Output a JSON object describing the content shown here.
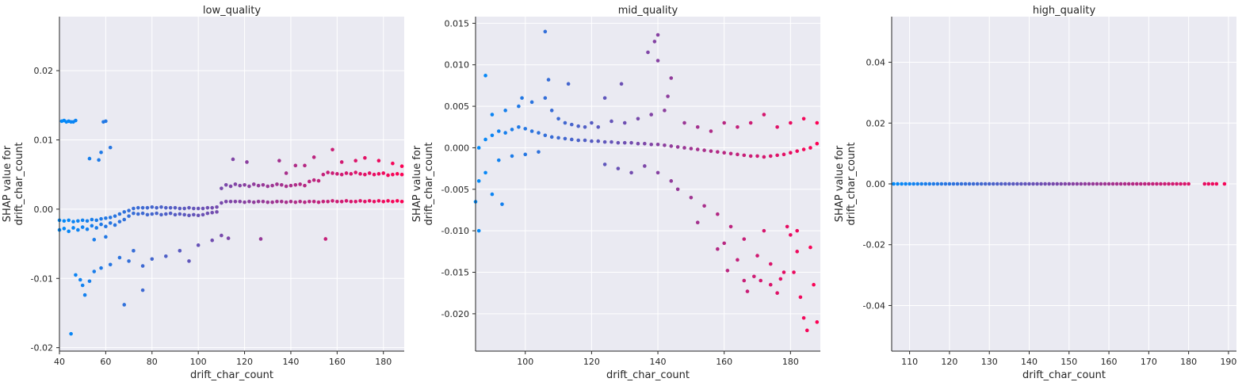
{
  "colors": {
    "low": "#008bfb",
    "high": "#ff0052",
    "background": "#eaeaf2",
    "grid": "#ffffff",
    "spine": "#262626"
  },
  "chart_data": [
    {
      "type": "scatter",
      "title": "low_quality",
      "xlabel": "drift_char_count",
      "ylabel": "SHAP value for\ndrift_char_count",
      "xlim": [
        40,
        189
      ],
      "ylim": [
        -0.0205,
        0.0278
      ],
      "xticks": [
        40,
        60,
        80,
        100,
        120,
        140,
        160,
        180
      ],
      "xtick_labels": [
        "40",
        "60",
        "80",
        "100",
        "120",
        "140",
        "160",
        "180"
      ],
      "yticks": [
        -0.02,
        -0.01,
        0.0,
        0.01,
        0.02
      ],
      "ytick_labels": [
        "-0.02",
        "-0.01",
        "0.00",
        "0.01",
        "0.02"
      ],
      "grid": true,
      "series": [
        {
          "x": [
            40,
            42,
            44,
            46,
            48,
            50,
            52,
            54,
            56,
            58,
            60,
            62,
            64,
            66,
            68,
            70,
            72,
            74,
            76,
            78,
            80,
            82,
            84,
            86,
            88,
            90,
            92,
            94,
            96,
            98,
            100,
            102,
            104,
            106,
            108,
            110,
            112,
            114,
            116,
            118,
            120,
            122,
            124,
            126,
            128,
            130,
            132,
            134,
            136,
            138,
            140,
            142,
            144,
            146,
            148,
            150,
            152,
            154,
            156,
            158,
            160,
            162,
            164,
            166,
            168,
            170,
            172,
            174,
            176,
            178,
            180,
            182,
            184,
            186,
            188
          ],
          "y": [
            -0.0016,
            -0.0017,
            -0.0016,
            -0.0018,
            -0.0017,
            -0.0016,
            -0.0017,
            -0.0015,
            -0.0016,
            -0.0014,
            -0.0013,
            -0.0012,
            -0.001,
            -0.0007,
            -0.0004,
            -0.0002,
            0.0001,
            0.0002,
            0.0002,
            0.0002,
            0.0003,
            0.0002,
            0.0003,
            0.0002,
            0.0002,
            0.0002,
            0.0001,
            0.0001,
            0.0002,
            0.0001,
            0.0001,
            0.0001,
            0.0002,
            0.0002,
            0.0003,
            0.0009,
            0.0011,
            0.0011,
            0.0011,
            0.0011,
            0.001,
            0.0011,
            0.001,
            0.0011,
            0.0011,
            0.001,
            0.001,
            0.0011,
            0.0011,
            0.001,
            0.0011,
            0.001,
            0.0011,
            0.001,
            0.0011,
            0.0011,
            0.001,
            0.0011,
            0.0011,
            0.0012,
            0.0011,
            0.0011,
            0.0012,
            0.0011,
            0.0011,
            0.0012,
            0.0011,
            0.0012,
            0.0011,
            0.0012,
            0.0011,
            0.0012,
            0.0011,
            0.0012,
            0.0011
          ]
        },
        {
          "x": [
            40,
            42,
            44,
            46,
            48,
            50,
            52,
            54,
            56,
            58,
            60,
            62,
            64,
            66,
            68,
            70,
            72,
            74,
            76,
            78,
            80,
            82,
            84,
            86,
            88,
            90,
            92,
            94,
            96,
            98,
            100,
            102,
            104,
            106,
            108,
            110,
            112,
            114,
            116,
            118,
            120,
            122,
            124,
            126,
            128,
            130,
            132,
            134,
            136,
            138,
            140,
            142,
            144,
            146,
            148,
            150,
            152,
            154,
            156,
            158,
            160,
            162,
            164,
            166,
            168,
            170,
            172,
            174,
            176,
            178,
            180,
            182,
            184,
            186,
            188
          ],
          "y": [
            -0.003,
            -0.0028,
            -0.0032,
            -0.0027,
            -0.003,
            -0.0026,
            -0.0029,
            -0.0024,
            -0.0027,
            -0.0022,
            -0.0025,
            -0.002,
            -0.0023,
            -0.0018,
            -0.0015,
            -0.001,
            -0.0006,
            -0.0007,
            -0.0006,
            -0.0008,
            -0.0007,
            -0.0006,
            -0.0008,
            -0.0007,
            -0.0006,
            -0.0008,
            -0.0007,
            -0.0008,
            -0.0009,
            -0.0008,
            -0.0009,
            -0.0008,
            -0.0006,
            -0.0005,
            -0.0004,
            0.003,
            0.0035,
            0.0033,
            0.0036,
            0.0034,
            0.0035,
            0.0033,
            0.0036,
            0.0034,
            0.0035,
            0.0033,
            0.0034,
            0.0036,
            0.0035,
            0.0033,
            0.0034,
            0.0035,
            0.0036,
            0.0034,
            0.004,
            0.0042,
            0.0041,
            0.005,
            0.0053,
            0.0052,
            0.0051,
            0.005,
            0.0052,
            0.0051,
            0.0053,
            0.0051,
            0.005,
            0.0052,
            0.005,
            0.0051,
            0.0052,
            0.0049,
            0.005,
            0.0051,
            0.005
          ]
        },
        {
          "x": [
            41,
            42,
            43,
            44,
            45,
            46,
            47,
            59,
            60,
            62,
            58,
            53,
            57,
            55,
            60,
            68,
            70,
            76,
            80,
            86,
            92,
            96,
            100,
            106,
            110,
            113,
            115,
            121,
            127,
            135,
            138,
            142,
            146,
            150,
            155,
            158,
            162,
            168,
            172,
            178,
            184,
            188,
            45,
            47,
            49,
            50,
            51,
            53,
            55,
            58,
            62,
            66,
            72,
            76
          ],
          "y": [
            0.0127,
            0.0128,
            0.0126,
            0.0127,
            0.0126,
            0.0126,
            0.0128,
            0.0126,
            0.0127,
            0.0089,
            0.0082,
            0.0073,
            0.0071,
            -0.0044,
            -0.004,
            -0.0138,
            -0.0075,
            -0.0117,
            -0.0072,
            -0.0068,
            -0.006,
            -0.0075,
            -0.0052,
            -0.0045,
            -0.0038,
            -0.0042,
            0.0072,
            0.0068,
            -0.0043,
            0.007,
            0.0052,
            0.0063,
            0.0063,
            0.0075,
            -0.0043,
            0.0086,
            0.0068,
            0.007,
            0.0074,
            0.007,
            0.0066,
            0.0062,
            -0.018,
            -0.0095,
            -0.0102,
            -0.011,
            -0.0124,
            -0.0104,
            -0.009,
            -0.0085,
            -0.008,
            -0.007,
            -0.006,
            -0.0082
          ]
        }
      ]
    },
    {
      "type": "scatter",
      "title": "mid_quality",
      "xlabel": "drift_char_count",
      "ylabel": "SHAP value for\ndrift_char_count",
      "xlim": [
        85,
        189
      ],
      "ylim": [
        -0.0245,
        0.0158
      ],
      "xticks": [
        100,
        120,
        140,
        160,
        180
      ],
      "xtick_labels": [
        "100",
        "120",
        "140",
        "160",
        "180"
      ],
      "yticks": [
        -0.02,
        -0.015,
        -0.01,
        -0.005,
        0.0,
        0.005,
        0.01,
        0.015
      ],
      "ytick_labels": [
        "-0.020",
        "-0.015",
        "-0.010",
        "-0.005",
        "0.000",
        "0.005",
        "0.010",
        "0.015"
      ],
      "grid": true,
      "series": [
        {
          "x": [
            86,
            88,
            90,
            92,
            94,
            96,
            98,
            100,
            102,
            104,
            106,
            108,
            110,
            112,
            114,
            116,
            118,
            120,
            122,
            124,
            126,
            128,
            130,
            132,
            134,
            136,
            138,
            140,
            142,
            144,
            146,
            148,
            150,
            152,
            154,
            156,
            158,
            160,
            162,
            164,
            166,
            168,
            170,
            172,
            174,
            176,
            178,
            180,
            182,
            184,
            186,
            188
          ],
          "y": [
            0.0,
            0.001,
            0.0015,
            0.002,
            0.0018,
            0.0022,
            0.0025,
            0.0023,
            0.002,
            0.0018,
            0.0015,
            0.0013,
            0.0012,
            0.0011,
            0.001,
            0.0009,
            0.0009,
            0.0008,
            0.0008,
            0.0007,
            0.0007,
            0.0006,
            0.0006,
            0.0006,
            0.0005,
            0.0005,
            0.0004,
            0.0004,
            0.0003,
            0.0002,
            0.0001,
            0.0,
            -0.0001,
            -0.0002,
            -0.0003,
            -0.0004,
            -0.0005,
            -0.0006,
            -0.0007,
            -0.0008,
            -0.0009,
            -0.001,
            -0.001,
            -0.0011,
            -0.001,
            -0.0009,
            -0.0008,
            -0.0006,
            -0.0004,
            -0.0002,
            0.0,
            0.0005
          ]
        },
        {
          "x": [
            86,
            88,
            90,
            92,
            94,
            96,
            98,
            100,
            102,
            104,
            106,
            108,
            110,
            112,
            114,
            116,
            118,
            120,
            122,
            124,
            126,
            128,
            130,
            132,
            134,
            136,
            138,
            140,
            142,
            144,
            146,
            148,
            150,
            152,
            154,
            156,
            158,
            160,
            162,
            164,
            166,
            168,
            170,
            172,
            174,
            176,
            178,
            180,
            182,
            184,
            186,
            188
          ],
          "y": [
            -0.004,
            -0.003,
            0.004,
            -0.0015,
            0.0045,
            -0.001,
            0.005,
            -0.0008,
            0.0055,
            -0.0005,
            0.006,
            0.0045,
            0.0035,
            0.003,
            0.0028,
            0.0026,
            0.0025,
            0.003,
            0.0025,
            -0.002,
            0.0032,
            -0.0025,
            0.003,
            -0.003,
            0.0035,
            -0.0022,
            0.004,
            -0.003,
            0.0045,
            -0.004,
            -0.005,
            0.003,
            -0.006,
            0.0025,
            -0.007,
            0.002,
            -0.008,
            0.003,
            -0.0095,
            0.0025,
            -0.011,
            0.003,
            -0.013,
            0.004,
            -0.014,
            0.0025,
            -0.015,
            0.003,
            -0.01,
            0.0035,
            -0.012,
            0.003
          ]
        },
        {
          "x": [
            85,
            86,
            88,
            90,
            93,
            99,
            106,
            107,
            113,
            124,
            129,
            137,
            139,
            140,
            140,
            143,
            144,
            152,
            158,
            161,
            166,
            167,
            169,
            172,
            174,
            177,
            179,
            180,
            182,
            183,
            184,
            185,
            187,
            188,
            176,
            171,
            160,
            164,
            181
          ],
          "y": [
            -0.0065,
            -0.01,
            0.0087,
            -0.0056,
            -0.0068,
            0.006,
            0.014,
            0.0082,
            0.0077,
            0.006,
            0.0077,
            0.0115,
            0.0128,
            0.0136,
            0.0105,
            0.0062,
            0.0084,
            -0.009,
            -0.0122,
            -0.0148,
            -0.016,
            -0.0173,
            -0.0155,
            -0.01,
            -0.0165,
            -0.0158,
            -0.0095,
            -0.0105,
            -0.0125,
            -0.018,
            -0.0205,
            -0.022,
            -0.0165,
            -0.021,
            -0.0175,
            -0.016,
            -0.0115,
            -0.0135,
            -0.015
          ]
        }
      ]
    },
    {
      "type": "scatter",
      "title": "high_quality",
      "xlabel": "drift_char_count",
      "ylabel": "SHAP value for\ndrift_char_count",
      "xlim": [
        105.5,
        192
      ],
      "ylim": [
        -0.055,
        0.055
      ],
      "xticks": [
        110,
        120,
        130,
        140,
        150,
        160,
        170,
        180,
        190
      ],
      "xtick_labels": [
        "110",
        "120",
        "130",
        "140",
        "150",
        "160",
        "170",
        "180",
        "190"
      ],
      "yticks": [
        -0.04,
        -0.02,
        0.0,
        0.02,
        0.04
      ],
      "ytick_labels": [
        "-0.04",
        "-0.02",
        "0.00",
        "0.02",
        "0.04"
      ],
      "grid": true,
      "series": [
        {
          "x": [
            106,
            107,
            108,
            109,
            110,
            111,
            112,
            113,
            114,
            115,
            116,
            117,
            118,
            119,
            120,
            121,
            122,
            123,
            124,
            125,
            126,
            127,
            128,
            129,
            130,
            131,
            132,
            133,
            134,
            135,
            136,
            137,
            138,
            139,
            140,
            141,
            142,
            143,
            144,
            145,
            146,
            147,
            148,
            149,
            150,
            151,
            152,
            153,
            154,
            155,
            156,
            157,
            158,
            159,
            160,
            161,
            162,
            163,
            164,
            165,
            166,
            167,
            168,
            169,
            170,
            171,
            172,
            173,
            174,
            175,
            176,
            177,
            178,
            179,
            180,
            184,
            185,
            186,
            187,
            189
          ],
          "y": [
            0,
            0,
            0,
            0,
            0,
            0,
            0,
            0,
            0,
            0,
            0,
            0,
            0,
            0,
            0,
            0,
            0,
            0,
            0,
            0,
            0,
            0,
            0,
            0,
            0,
            0,
            0,
            0,
            0,
            0,
            0,
            0,
            0,
            0,
            0,
            0,
            0,
            0,
            0,
            0,
            0,
            0,
            0,
            0,
            0,
            0,
            0,
            0,
            0,
            0,
            0,
            0,
            0,
            0,
            0,
            0,
            0,
            0,
            0,
            0,
            0,
            0,
            0,
            0,
            0,
            0,
            0,
            0,
            0,
            0,
            0,
            0,
            0,
            0,
            0,
            0,
            0,
            0,
            0,
            0
          ]
        }
      ]
    }
  ]
}
